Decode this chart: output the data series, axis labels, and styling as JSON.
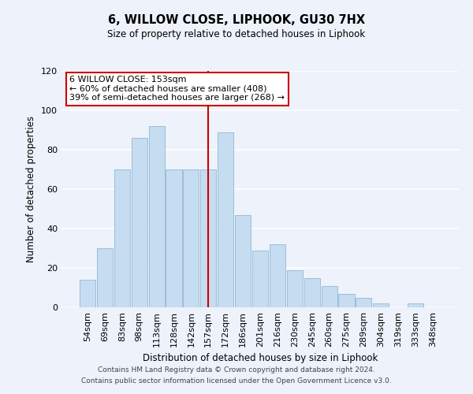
{
  "title": "6, WILLOW CLOSE, LIPHOOK, GU30 7HX",
  "subtitle": "Size of property relative to detached houses in Liphook",
  "xlabel": "Distribution of detached houses by size in Liphook",
  "ylabel": "Number of detached properties",
  "categories": [
    "54sqm",
    "69sqm",
    "83sqm",
    "98sqm",
    "113sqm",
    "128sqm",
    "142sqm",
    "157sqm",
    "172sqm",
    "186sqm",
    "201sqm",
    "216sqm",
    "230sqm",
    "245sqm",
    "260sqm",
    "275sqm",
    "289sqm",
    "304sqm",
    "319sqm",
    "333sqm",
    "348sqm"
  ],
  "values": [
    14,
    30,
    70,
    86,
    92,
    70,
    70,
    70,
    89,
    47,
    29,
    32,
    19,
    15,
    11,
    7,
    5,
    2,
    0,
    2,
    0
  ],
  "bar_color": "#c6dcf0",
  "bar_edge_color": "#9abfda",
  "highlight_index": 7,
  "highlight_line_color": "#cc0000",
  "ylim": [
    0,
    120
  ],
  "yticks": [
    0,
    20,
    40,
    60,
    80,
    100,
    120
  ],
  "annotation_box_text": "6 WILLOW CLOSE: 153sqm\n← 60% of detached houses are smaller (408)\n39% of semi-detached houses are larger (268) →",
  "annotation_box_color": "#ffffff",
  "annotation_box_edge_color": "#cc0000",
  "footer_line1": "Contains HM Land Registry data © Crown copyright and database right 2024.",
  "footer_line2": "Contains public sector information licensed under the Open Government Licence v3.0.",
  "background_color": "#edf2fb",
  "grid_color": "#ffffff"
}
